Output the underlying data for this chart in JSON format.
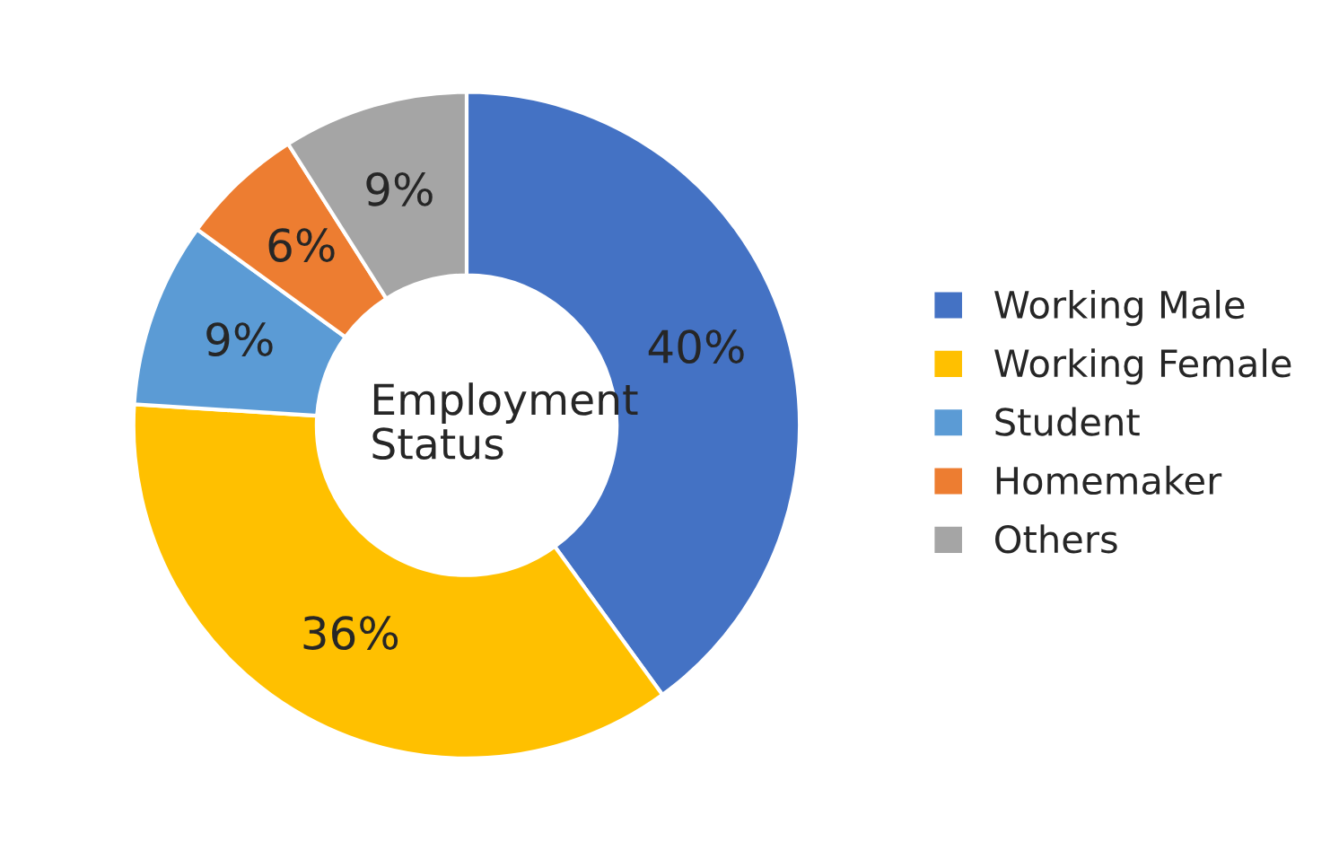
{
  "chart_data": {
    "type": "donut",
    "title": "Employment Status",
    "categories": [
      "Working Male",
      "Working Female",
      "Student",
      "Homemaker",
      "Others"
    ],
    "values": [
      40,
      36,
      9,
      6,
      9
    ],
    "colors": [
      "#4472c4",
      "#ffc000",
      "#5b9bd5",
      "#ed7d31",
      "#a5a5a5"
    ],
    "value_labels": [
      "40%",
      "36%",
      "9%",
      "6%",
      "9%"
    ],
    "legend": "right"
  }
}
